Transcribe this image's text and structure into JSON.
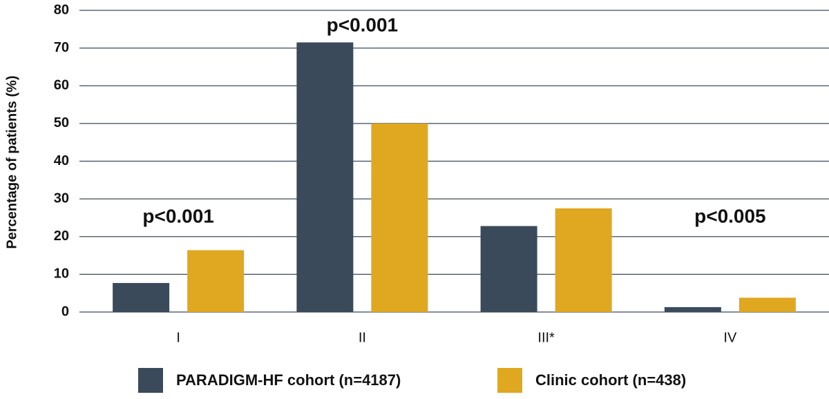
{
  "chart_data": {
    "type": "bar",
    "y_label": "Percentage of patients (%)",
    "categories": [
      "I",
      "II",
      "III*",
      "IV"
    ],
    "series": [
      {
        "name": "PARADIGM-HF cohort (n=4187)",
        "color": "#3b4a5a",
        "values": [
          7.7,
          71.5,
          22.8,
          1.3
        ]
      },
      {
        "name": "Clinic cohort (n=438)",
        "color": "#e0a820",
        "values": [
          16.4,
          50,
          27.5,
          3.8
        ]
      }
    ],
    "annotations": [
      "p<0.001",
      "p<0.001",
      null,
      "p<0.005"
    ],
    "ylim": [
      0,
      80
    ],
    "yticks": [
      0,
      10,
      20,
      30,
      40,
      50,
      60,
      70,
      80
    ],
    "grid": true,
    "legend": "bottom"
  }
}
